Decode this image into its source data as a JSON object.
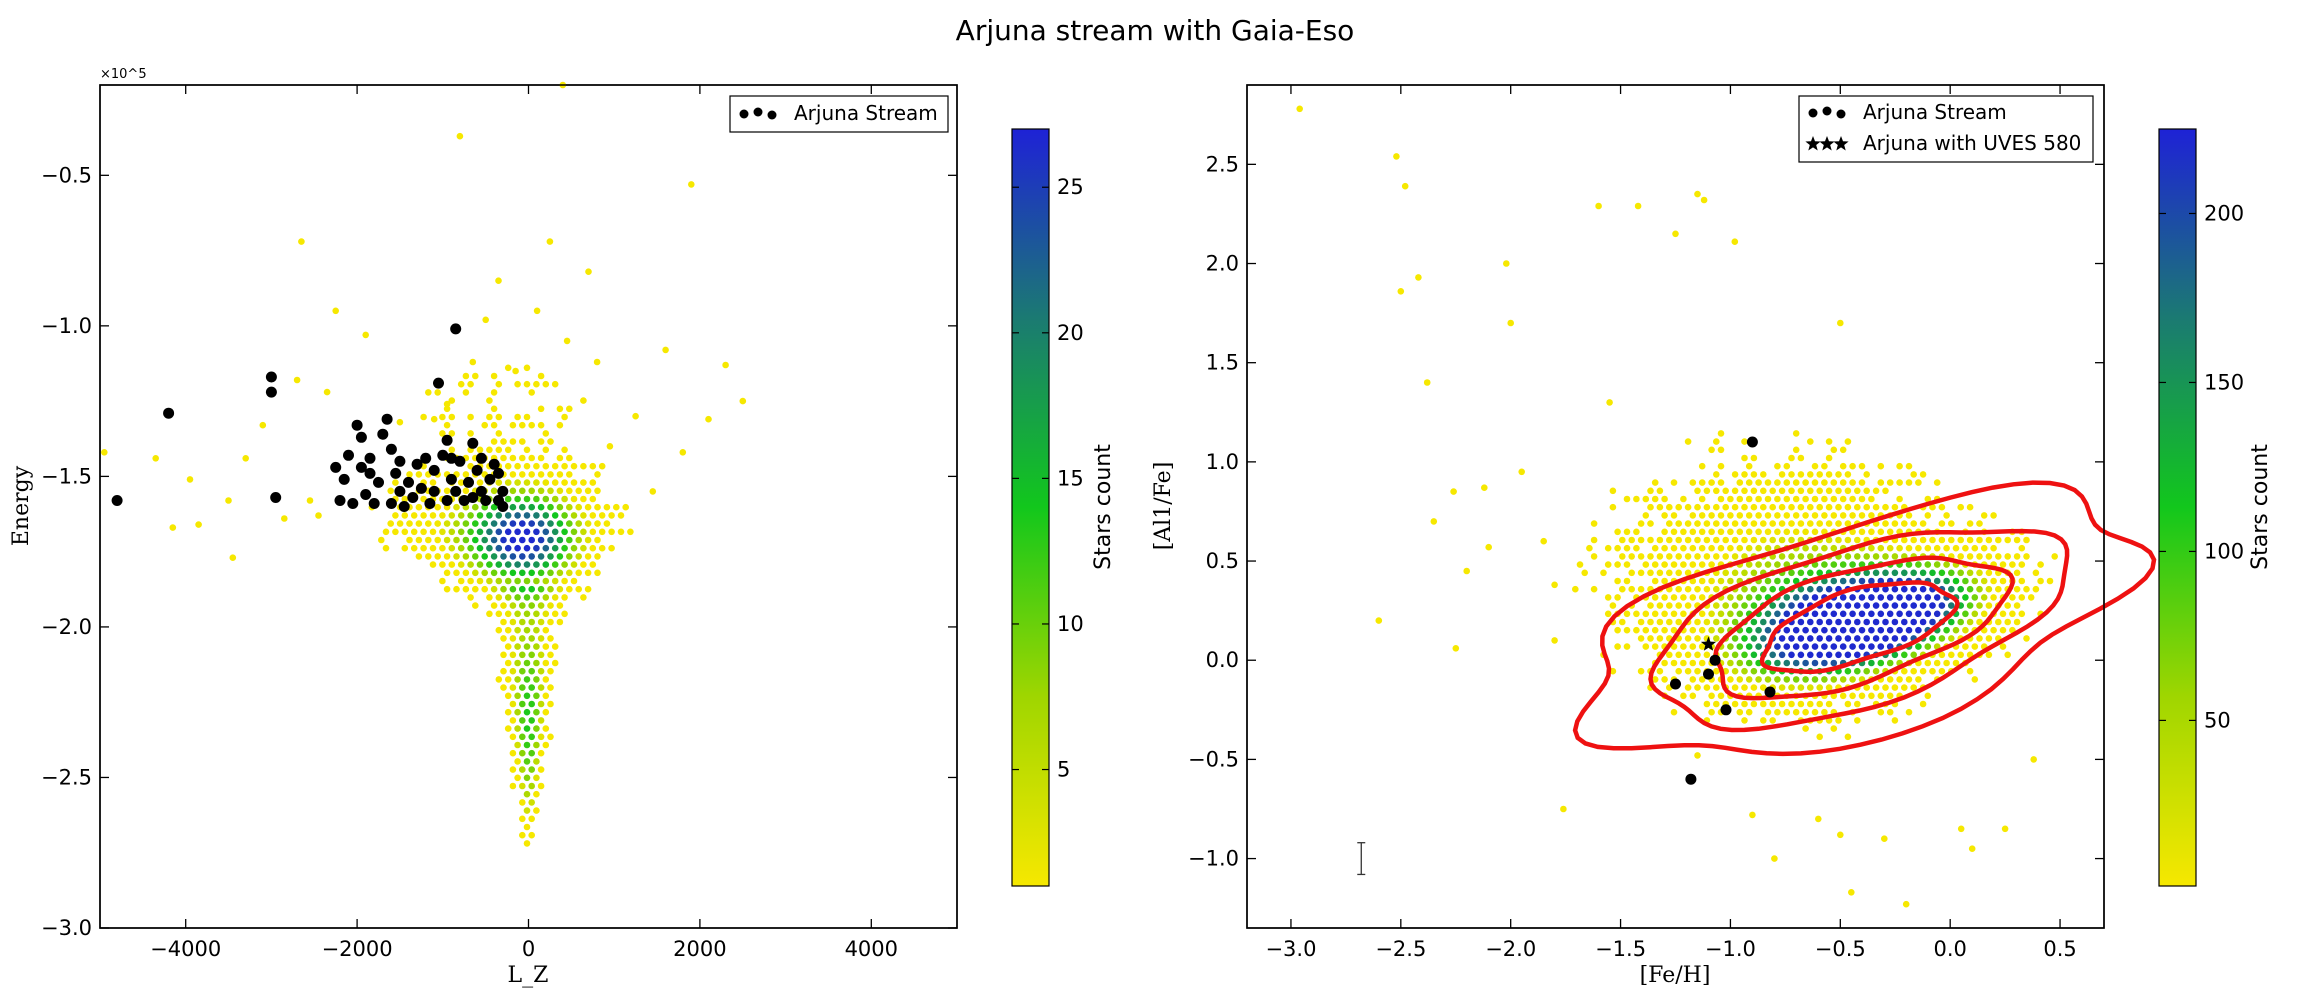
{
  "figure": {
    "title": "Arjuna stream with Gaia-Eso"
  },
  "colors": {
    "colormap": [
      "#f6e800",
      "#9fd600",
      "#12c71c",
      "#1b7a72",
      "#1e22d6"
    ],
    "points": "#000000",
    "contour": "#ee1111"
  },
  "chart_data": [
    {
      "type": "scatter",
      "plot_kind": "hexbin density with overlaid scatter",
      "xlabel": "L_Z",
      "ylabel": "Energy",
      "xlim": [
        -5000,
        5000
      ],
      "ylim": [
        -3.0,
        -0.2
      ],
      "y_scale_factor": "×10^5",
      "x_ticks": [
        -4000,
        -2000,
        0,
        2000,
        4000
      ],
      "x_tick_labels": [
        "−4000",
        "−2000",
        "0",
        "2000",
        "4000"
      ],
      "y_ticks": [
        -3.0,
        -2.5,
        -2.0,
        -1.5,
        -1.0,
        -0.5
      ],
      "y_tick_labels": [
        "−3.0",
        "−2.5",
        "−2.0",
        "−1.5",
        "−1.0",
        "−0.5"
      ],
      "legend": {
        "position": "top-right",
        "entries": [
          "Arjuna Stream"
        ]
      },
      "colorbar": {
        "label": "Stars count",
        "range": [
          1,
          27
        ],
        "ticks": [
          5,
          10,
          15,
          20,
          25
        ],
        "tick_labels": [
          "5",
          "10",
          "15",
          "20",
          "25"
        ]
      },
      "density_peak": {
        "x": -50,
        "y": -1.75,
        "max_count": 27
      },
      "series": [
        {
          "name": "Arjuna Stream",
          "marker": "circle",
          "x": [
            -4800,
            -4200,
            -3000,
            -3000,
            -2950,
            -2250,
            -2200,
            -2150,
            -2100,
            -2050,
            -2000,
            -1950,
            -1950,
            -1900,
            -1850,
            -1850,
            -1800,
            -1750,
            -1700,
            -1650,
            -1600,
            -1600,
            -1550,
            -1500,
            -1500,
            -1450,
            -1400,
            -1350,
            -1300,
            -1250,
            -1200,
            -1150,
            -1100,
            -1100,
            -1050,
            -1000,
            -950,
            -950,
            -900,
            -900,
            -850,
            -850,
            -800,
            -750,
            -700,
            -650,
            -650,
            -600,
            -550,
            -550,
            -500,
            -450,
            -400,
            -350,
            -350,
            -300,
            -300
          ],
          "y": [
            -1.58,
            -1.29,
            -1.17,
            -1.22,
            -1.57,
            -1.47,
            -1.58,
            -1.51,
            -1.43,
            -1.59,
            -1.33,
            -1.37,
            -1.47,
            -1.56,
            -1.49,
            -1.44,
            -1.59,
            -1.52,
            -1.36,
            -1.31,
            -1.41,
            -1.59,
            -1.49,
            -1.55,
            -1.45,
            -1.6,
            -1.52,
            -1.57,
            -1.46,
            -1.54,
            -1.44,
            -1.59,
            -1.48,
            -1.55,
            -1.19,
            -1.43,
            -1.58,
            -1.38,
            -1.51,
            -1.44,
            -1.01,
            -1.55,
            -1.45,
            -1.58,
            -1.52,
            -1.39,
            -1.57,
            -1.48,
            -1.55,
            -1.44,
            -1.58,
            -1.51,
            -1.46,
            -1.58,
            -1.49,
            -1.55,
            -1.6
          ]
        }
      ]
    },
    {
      "type": "scatter",
      "plot_kind": "hexbin density with contours and overlaid scatter",
      "xlabel": "[Fe/H]",
      "ylabel": "[Al1/Fe]",
      "xlim": [
        -3.2,
        0.7
      ],
      "ylim": [
        -1.35,
        2.9
      ],
      "x_ticks": [
        -3.0,
        -2.5,
        -2.0,
        -1.5,
        -1.0,
        -0.5,
        0.0,
        0.5
      ],
      "x_tick_labels": [
        "−3.0",
        "−2.5",
        "−2.0",
        "−1.5",
        "−1.0",
        "−0.5",
        "0.0",
        "0.5"
      ],
      "y_ticks": [
        -1.0,
        -0.5,
        0.0,
        0.5,
        1.0,
        1.5,
        2.0,
        2.5
      ],
      "y_tick_labels": [
        "−1.0",
        "−0.5",
        "0.0",
        "0.5",
        "1.0",
        "1.5",
        "2.0",
        "2.5"
      ],
      "legend": {
        "position": "top-right",
        "entries": [
          "Arjuna Stream",
          "Arjuna with UVES 580"
        ]
      },
      "colorbar": {
        "label": "Stars count",
        "range": [
          1,
          225
        ],
        "ticks": [
          50,
          100,
          150,
          200
        ],
        "tick_labels": [
          "50",
          "100",
          "150",
          "200"
        ]
      },
      "density_peak": {
        "x": -0.35,
        "y": 0.2,
        "max_count": 225
      },
      "contour_levels": 4,
      "error_bar": {
        "x": -2.68,
        "y": -1.0,
        "y_error": 0.08
      },
      "series": [
        {
          "name": "Arjuna Stream",
          "marker": "circle",
          "x": [
            -0.9,
            -1.07,
            -1.1,
            -1.25,
            -1.02,
            -0.82,
            -1.18
          ],
          "y": [
            1.1,
            0.0,
            -0.07,
            -0.12,
            -0.25,
            -0.16,
            -0.6
          ]
        },
        {
          "name": "Arjuna with UVES 580",
          "marker": "star",
          "x": [
            -1.1
          ],
          "y": [
            0.08
          ]
        }
      ]
    }
  ]
}
